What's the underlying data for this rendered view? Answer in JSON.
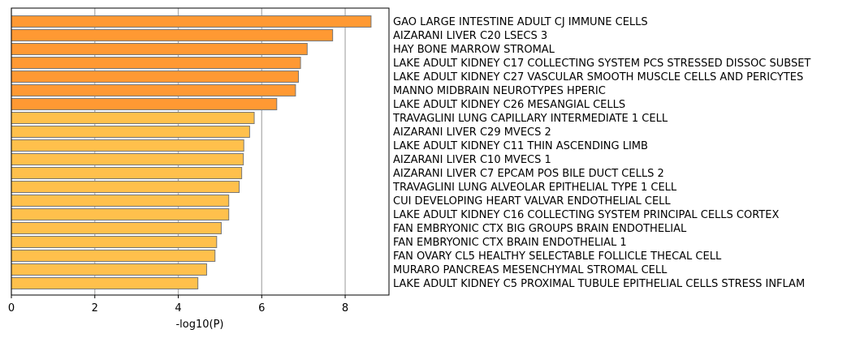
{
  "chart_data": {
    "type": "bar",
    "orientation": "horizontal",
    "title": "",
    "xlabel": "-log10(P)",
    "ylabel": "",
    "xlim": [
      0,
      9.05
    ],
    "xticks": [
      0,
      2,
      4,
      6,
      8
    ],
    "xtick_labels": [
      "0",
      "2",
      "4",
      "6",
      "8"
    ],
    "grid": "vertical",
    "legend": "none",
    "colors": {
      "strong": "#FF9933",
      "weak": "#FFC04C",
      "edge": "#777777",
      "grid": "#b0b0b0"
    },
    "categories": [
      "GAO LARGE INTESTINE ADULT CJ IMMUNE CELLS",
      "AIZARANI LIVER C20 LSECS 3",
      "HAY BONE MARROW STROMAL",
      "LAKE ADULT KIDNEY C17 COLLECTING SYSTEM PCS STRESSED DISSOC SUBSET",
      "LAKE ADULT KIDNEY C27 VASCULAR SMOOTH MUSCLE CELLS AND PERICYTES",
      "MANNO MIDBRAIN NEUROTYPES HPERIC",
      "LAKE ADULT KIDNEY C26 MESANGIAL CELLS",
      "TRAVAGLINI LUNG CAPILLARY INTERMEDIATE 1 CELL",
      "AIZARANI LIVER C29 MVECS 2",
      "LAKE ADULT KIDNEY C11 THIN ASCENDING LIMB",
      "AIZARANI LIVER C10 MVECS 1",
      "AIZARANI LIVER C7 EPCAM POS BILE DUCT CELLS 2",
      "TRAVAGLINI LUNG ALVEOLAR EPITHELIAL TYPE 1 CELL",
      "CUI DEVELOPING HEART VALVAR ENDOTHELIAL CELL",
      "LAKE ADULT KIDNEY C16 COLLECTING SYSTEM PRINCIPAL CELLS CORTEX",
      "FAN EMBRYONIC CTX BIG GROUPS BRAIN ENDOTHELIAL",
      "FAN EMBRYONIC CTX BRAIN ENDOTHELIAL 1",
      "FAN OVARY CL5 HEALTHY SELECTABLE FOLLICLE THECAL CELL",
      "MURARO PANCREAS MESENCHYMAL STROMAL CELL",
      "LAKE ADULT KIDNEY C5 PROXIMAL TUBULE EPITHELIAL CELLS STRESS INFLAM"
    ],
    "values": [
      8.62,
      7.7,
      7.09,
      6.93,
      6.88,
      6.81,
      6.36,
      5.82,
      5.71,
      5.57,
      5.56,
      5.52,
      5.46,
      5.21,
      5.21,
      5.03,
      4.92,
      4.88,
      4.68,
      4.47
    ],
    "bar_colors": [
      "strong",
      "strong",
      "strong",
      "strong",
      "strong",
      "strong",
      "strong",
      "weak",
      "weak",
      "weak",
      "weak",
      "weak",
      "weak",
      "weak",
      "weak",
      "weak",
      "weak",
      "weak",
      "weak",
      "weak"
    ]
  }
}
